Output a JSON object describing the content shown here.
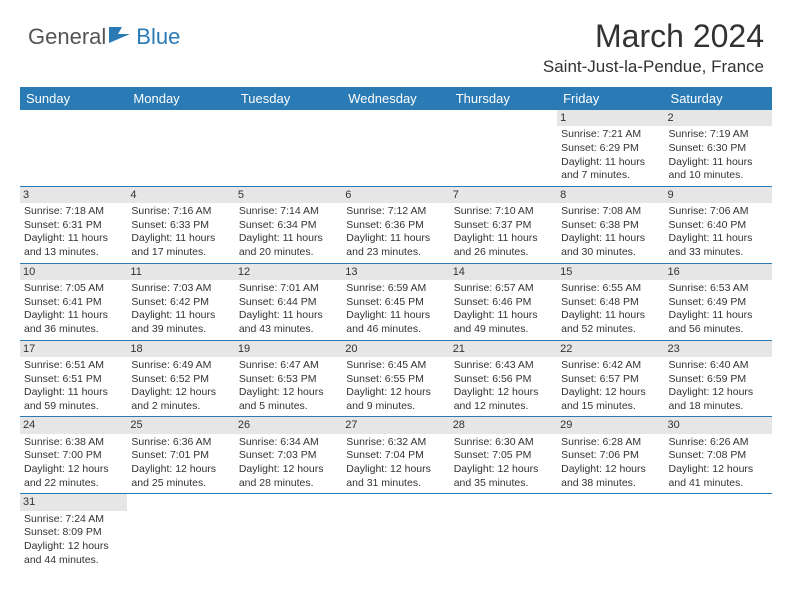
{
  "logo": {
    "general": "General",
    "blue": "Blue"
  },
  "title": "March 2024",
  "location": "Saint-Just-la-Pendue, France",
  "colors": {
    "header_bg": "#2a7ab6",
    "daynum_bg": "#e6e6e6",
    "border": "#2a7ab6"
  },
  "day_headers": [
    "Sunday",
    "Monday",
    "Tuesday",
    "Wednesday",
    "Thursday",
    "Friday",
    "Saturday"
  ],
  "weeks": [
    [
      null,
      null,
      null,
      null,
      null,
      {
        "n": "1",
        "sr": "Sunrise: 7:21 AM",
        "ss": "Sunset: 6:29 PM",
        "d1": "Daylight: 11 hours",
        "d2": "and 7 minutes."
      },
      {
        "n": "2",
        "sr": "Sunrise: 7:19 AM",
        "ss": "Sunset: 6:30 PM",
        "d1": "Daylight: 11 hours",
        "d2": "and 10 minutes."
      }
    ],
    [
      {
        "n": "3",
        "sr": "Sunrise: 7:18 AM",
        "ss": "Sunset: 6:31 PM",
        "d1": "Daylight: 11 hours",
        "d2": "and 13 minutes."
      },
      {
        "n": "4",
        "sr": "Sunrise: 7:16 AM",
        "ss": "Sunset: 6:33 PM",
        "d1": "Daylight: 11 hours",
        "d2": "and 17 minutes."
      },
      {
        "n": "5",
        "sr": "Sunrise: 7:14 AM",
        "ss": "Sunset: 6:34 PM",
        "d1": "Daylight: 11 hours",
        "d2": "and 20 minutes."
      },
      {
        "n": "6",
        "sr": "Sunrise: 7:12 AM",
        "ss": "Sunset: 6:36 PM",
        "d1": "Daylight: 11 hours",
        "d2": "and 23 minutes."
      },
      {
        "n": "7",
        "sr": "Sunrise: 7:10 AM",
        "ss": "Sunset: 6:37 PM",
        "d1": "Daylight: 11 hours",
        "d2": "and 26 minutes."
      },
      {
        "n": "8",
        "sr": "Sunrise: 7:08 AM",
        "ss": "Sunset: 6:38 PM",
        "d1": "Daylight: 11 hours",
        "d2": "and 30 minutes."
      },
      {
        "n": "9",
        "sr": "Sunrise: 7:06 AM",
        "ss": "Sunset: 6:40 PM",
        "d1": "Daylight: 11 hours",
        "d2": "and 33 minutes."
      }
    ],
    [
      {
        "n": "10",
        "sr": "Sunrise: 7:05 AM",
        "ss": "Sunset: 6:41 PM",
        "d1": "Daylight: 11 hours",
        "d2": "and 36 minutes."
      },
      {
        "n": "11",
        "sr": "Sunrise: 7:03 AM",
        "ss": "Sunset: 6:42 PM",
        "d1": "Daylight: 11 hours",
        "d2": "and 39 minutes."
      },
      {
        "n": "12",
        "sr": "Sunrise: 7:01 AM",
        "ss": "Sunset: 6:44 PM",
        "d1": "Daylight: 11 hours",
        "d2": "and 43 minutes."
      },
      {
        "n": "13",
        "sr": "Sunrise: 6:59 AM",
        "ss": "Sunset: 6:45 PM",
        "d1": "Daylight: 11 hours",
        "d2": "and 46 minutes."
      },
      {
        "n": "14",
        "sr": "Sunrise: 6:57 AM",
        "ss": "Sunset: 6:46 PM",
        "d1": "Daylight: 11 hours",
        "d2": "and 49 minutes."
      },
      {
        "n": "15",
        "sr": "Sunrise: 6:55 AM",
        "ss": "Sunset: 6:48 PM",
        "d1": "Daylight: 11 hours",
        "d2": "and 52 minutes."
      },
      {
        "n": "16",
        "sr": "Sunrise: 6:53 AM",
        "ss": "Sunset: 6:49 PM",
        "d1": "Daylight: 11 hours",
        "d2": "and 56 minutes."
      }
    ],
    [
      {
        "n": "17",
        "sr": "Sunrise: 6:51 AM",
        "ss": "Sunset: 6:51 PM",
        "d1": "Daylight: 11 hours",
        "d2": "and 59 minutes."
      },
      {
        "n": "18",
        "sr": "Sunrise: 6:49 AM",
        "ss": "Sunset: 6:52 PM",
        "d1": "Daylight: 12 hours",
        "d2": "and 2 minutes."
      },
      {
        "n": "19",
        "sr": "Sunrise: 6:47 AM",
        "ss": "Sunset: 6:53 PM",
        "d1": "Daylight: 12 hours",
        "d2": "and 5 minutes."
      },
      {
        "n": "20",
        "sr": "Sunrise: 6:45 AM",
        "ss": "Sunset: 6:55 PM",
        "d1": "Daylight: 12 hours",
        "d2": "and 9 minutes."
      },
      {
        "n": "21",
        "sr": "Sunrise: 6:43 AM",
        "ss": "Sunset: 6:56 PM",
        "d1": "Daylight: 12 hours",
        "d2": "and 12 minutes."
      },
      {
        "n": "22",
        "sr": "Sunrise: 6:42 AM",
        "ss": "Sunset: 6:57 PM",
        "d1": "Daylight: 12 hours",
        "d2": "and 15 minutes."
      },
      {
        "n": "23",
        "sr": "Sunrise: 6:40 AM",
        "ss": "Sunset: 6:59 PM",
        "d1": "Daylight: 12 hours",
        "d2": "and 18 minutes."
      }
    ],
    [
      {
        "n": "24",
        "sr": "Sunrise: 6:38 AM",
        "ss": "Sunset: 7:00 PM",
        "d1": "Daylight: 12 hours",
        "d2": "and 22 minutes."
      },
      {
        "n": "25",
        "sr": "Sunrise: 6:36 AM",
        "ss": "Sunset: 7:01 PM",
        "d1": "Daylight: 12 hours",
        "d2": "and 25 minutes."
      },
      {
        "n": "26",
        "sr": "Sunrise: 6:34 AM",
        "ss": "Sunset: 7:03 PM",
        "d1": "Daylight: 12 hours",
        "d2": "and 28 minutes."
      },
      {
        "n": "27",
        "sr": "Sunrise: 6:32 AM",
        "ss": "Sunset: 7:04 PM",
        "d1": "Daylight: 12 hours",
        "d2": "and 31 minutes."
      },
      {
        "n": "28",
        "sr": "Sunrise: 6:30 AM",
        "ss": "Sunset: 7:05 PM",
        "d1": "Daylight: 12 hours",
        "d2": "and 35 minutes."
      },
      {
        "n": "29",
        "sr": "Sunrise: 6:28 AM",
        "ss": "Sunset: 7:06 PM",
        "d1": "Daylight: 12 hours",
        "d2": "and 38 minutes."
      },
      {
        "n": "30",
        "sr": "Sunrise: 6:26 AM",
        "ss": "Sunset: 7:08 PM",
        "d1": "Daylight: 12 hours",
        "d2": "and 41 minutes."
      }
    ],
    [
      {
        "n": "31",
        "sr": "Sunrise: 7:24 AM",
        "ss": "Sunset: 8:09 PM",
        "d1": "Daylight: 12 hours",
        "d2": "and 44 minutes."
      },
      null,
      null,
      null,
      null,
      null,
      null
    ]
  ]
}
